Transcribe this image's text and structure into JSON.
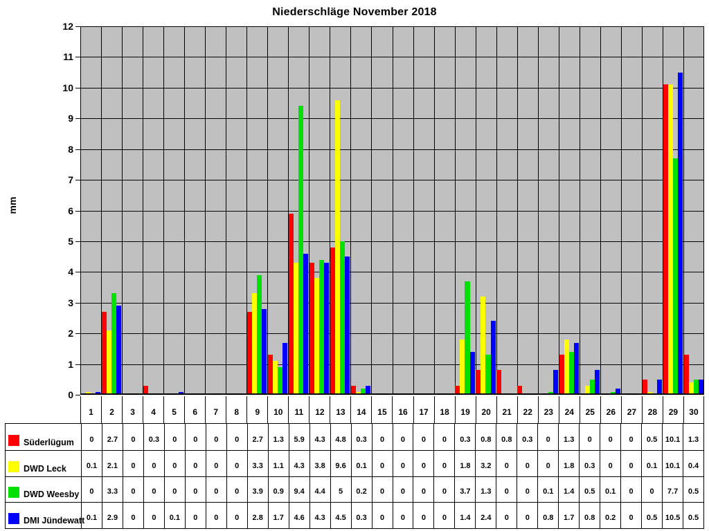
{
  "chart_data": {
    "type": "bar",
    "title": "Niederschläge November 2018",
    "xlabel": "",
    "ylabel": "mm",
    "ylim": [
      0,
      12
    ],
    "yticks": [
      0,
      1,
      2,
      3,
      4,
      5,
      6,
      7,
      8,
      9,
      10,
      11,
      12
    ],
    "grid": true,
    "plot_background": "#c0c0c0",
    "gridline_color": "#000000",
    "legend_position": "table-left",
    "categories": [
      1,
      2,
      3,
      4,
      5,
      6,
      7,
      8,
      9,
      10,
      11,
      12,
      13,
      14,
      15,
      16,
      17,
      18,
      19,
      20,
      21,
      22,
      23,
      24,
      25,
      26,
      27,
      28,
      29,
      30
    ],
    "series": [
      {
        "name": "Süderlügum",
        "color": "#ff0000",
        "values": [
          0,
          2.7,
          0,
          0.3,
          0,
          0,
          0,
          0,
          2.7,
          1.3,
          5.9,
          4.3,
          4.8,
          0.3,
          0,
          0,
          0,
          0,
          0.3,
          0.8,
          0.8,
          0.3,
          0,
          1.3,
          0,
          0,
          0,
          0.5,
          10.1,
          1.3
        ]
      },
      {
        "name": "DWD Leck",
        "color": "#ffff00",
        "values": [
          0.1,
          2.1,
          0,
          0,
          0,
          0,
          0,
          0,
          3.3,
          1.1,
          4.3,
          3.8,
          9.6,
          0.1,
          0,
          0,
          0,
          0,
          1.8,
          3.2,
          0,
          0,
          0,
          1.8,
          0.3,
          0,
          0,
          0.1,
          10.1,
          0.4
        ]
      },
      {
        "name": "DWD Weesby",
        "color": "#00e000",
        "values": [
          0,
          3.3,
          0,
          0,
          0,
          0,
          0,
          0,
          3.9,
          0.9,
          9.4,
          4.4,
          5,
          0.2,
          0,
          0,
          0,
          0,
          3.7,
          1.3,
          0,
          0,
          0.1,
          1.4,
          0.5,
          0.1,
          0,
          0,
          7.7,
          0.5
        ]
      },
      {
        "name": "DMI Jündewatt",
        "color": "#0000ff",
        "values": [
          0.1,
          2.9,
          0,
          0,
          0.1,
          0,
          0,
          0,
          2.8,
          1.7,
          4.6,
          4.3,
          4.5,
          0.3,
          0,
          0,
          0,
          0,
          1.4,
          2.4,
          0,
          0,
          0.8,
          1.7,
          0.8,
          0.2,
          0,
          0.5,
          10.5,
          0.5
        ]
      }
    ]
  }
}
